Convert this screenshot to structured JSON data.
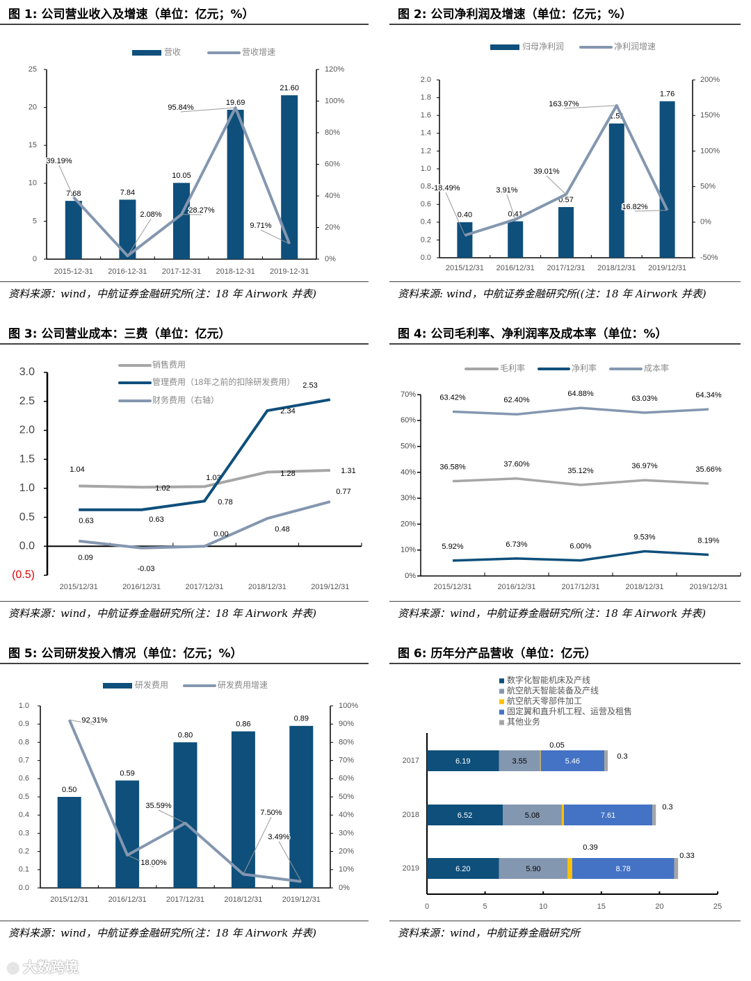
{
  "panels": [
    {
      "title": "图 1:  公司营业收入及增速（单位：亿元；%）",
      "source": "资料来源：wind，中航证券金融研究所(注：18 年 Airwork 并表)"
    },
    {
      "title": "图 2:  公司净利润及增速（单位：亿元；%）",
      "source": "资料来源: wind，中航证券金融研究所((注：18 年 Airwork 并表)"
    },
    {
      "title": "图 3:  公司营业成本：三费（单位：亿元）",
      "source": "资料来源：wind，中航证券金融研究所(注：18 年 Airwork 并表)"
    },
    {
      "title": "图 4:  公司毛利率、净利润率及成本率（单位：%）",
      "source": "资料来源：wind，中航证券金融研究所(注：18 年 Airwork 并表)"
    },
    {
      "title": "图 5:  公司研发投入情况（单位：亿元；%）",
      "source": "资料来源：wind，中航证券金融研究所(注：18 年 Airwork 并表)"
    },
    {
      "title": "图 6:  历年分产品营收（单位：亿元）",
      "source": "资料来源：wind，中航证券金融研究所"
    }
  ],
  "watermark": "大数跨境",
  "colors": {
    "dark_blue": "#0e4f7b",
    "blue_gray": "#8497b0",
    "gray": "#a6a6a6",
    "blue": "#4472c4",
    "yellow": "#ffc000",
    "other_gray": "#a5a5a5"
  },
  "chart_data": [
    {
      "type": "bar+line",
      "categories": [
        "2015-12-31",
        "2016-12-31",
        "2017-12-31",
        "2018-12-31",
        "2019-12-31"
      ],
      "bar": {
        "name": "营收",
        "values": [
          7.68,
          7.84,
          10.05,
          19.69,
          21.6
        ],
        "labels": [
          "7.68",
          "7.84",
          "10.05",
          "19.69",
          "21.60"
        ]
      },
      "line": {
        "name": "营收增速",
        "values": [
          39.19,
          2.08,
          28.27,
          95.84,
          9.71
        ],
        "labels": [
          "39.19%",
          "2.08%",
          "28.27%",
          "95.84%",
          "9.71%"
        ]
      },
      "ylim": [
        0,
        25
      ],
      "yticks": [
        "0",
        "5",
        "10",
        "15",
        "20",
        "25"
      ],
      "y2lim": [
        0,
        120
      ],
      "y2ticks": [
        "0%",
        "20%",
        "40%",
        "60%",
        "80%",
        "100%",
        "120%"
      ]
    },
    {
      "type": "bar+line",
      "categories": [
        "2015/12/31",
        "2016/12/31",
        "2017/12/31",
        "2018/12/31",
        "2019/12/31"
      ],
      "bar": {
        "name": "归母净利润",
        "values": [
          0.4,
          0.41,
          0.57,
          1.51,
          1.76
        ],
        "labels": [
          "0.40",
          "0.41",
          "0.57",
          "1.51",
          "1.76"
        ]
      },
      "line": {
        "name": "净利润增速",
        "values": [
          -18.49,
          3.91,
          39.01,
          163.97,
          16.82
        ],
        "labels": [
          "-18.49%",
          "3.91%",
          "39.01%",
          "163.97%",
          "16.82%"
        ]
      },
      "ylim": [
        0,
        2.0
      ],
      "yticks": [
        "0.0",
        "0.2",
        "0.4",
        "0.6",
        "0.8",
        "1.0",
        "1.2",
        "1.4",
        "1.6",
        "1.8",
        "2.0"
      ],
      "y2lim": [
        -50,
        200
      ],
      "y2ticks": [
        "-50%",
        "0%",
        "50%",
        "100%",
        "150%",
        "200%"
      ]
    },
    {
      "type": "line",
      "categories": [
        "2015/12/31",
        "2016/12/31",
        "2017/12/31",
        "2018/12/31",
        "2019/12/31"
      ],
      "series": [
        {
          "name": "销售费用",
          "values": [
            1.04,
            1.02,
            1.03,
            1.28,
            1.31
          ],
          "labels": [
            "1.04",
            "1.02",
            "1.03",
            "1.28",
            "1.31"
          ]
        },
        {
          "name": "管理费用（18年之前的扣除研发费用）",
          "values": [
            0.63,
            0.63,
            0.78,
            2.34,
            2.53
          ],
          "labels": [
            "0.63",
            "0.63",
            "0.78",
            "2.34",
            "2.53"
          ]
        },
        {
          "name": "财务费用（右轴）",
          "values": [
            0.09,
            -0.03,
            0.0,
            0.48,
            0.77
          ],
          "labels": [
            "0.09",
            "-0.03",
            "0.00",
            "0.48",
            "0.77"
          ]
        }
      ],
      "ylim": [
        -0.5,
        3.0
      ],
      "yticks": [
        "(0.5)",
        "0.0",
        "0.5",
        "1.0",
        "1.5",
        "2.0",
        "2.5",
        "3.0"
      ]
    },
    {
      "type": "line",
      "categories": [
        "2015/12/31",
        "2016/12/31",
        "2017/12/31",
        "2018/12/31",
        "2019/12/31"
      ],
      "series": [
        {
          "name": "毛利率",
          "values": [
            36.58,
            37.6,
            35.12,
            36.97,
            35.66
          ],
          "labels": [
            "36.58%",
            "37.60%",
            "35.12%",
            "36.97%",
            "35.66%"
          ]
        },
        {
          "name": "净利率",
          "values": [
            5.92,
            6.73,
            6.0,
            9.53,
            8.19
          ],
          "labels": [
            "5.92%",
            "6.73%",
            "6.00%",
            "9.53%",
            "8.19%"
          ]
        },
        {
          "name": "成本率",
          "values": [
            63.42,
            62.4,
            64.88,
            63.03,
            64.34
          ],
          "labels": [
            "63.42%",
            "62.40%",
            "64.88%",
            "63.03%",
            "64.34%"
          ]
        }
      ],
      "ylim": [
        0,
        70
      ],
      "yticks": [
        "0%",
        "10%",
        "20%",
        "30%",
        "40%",
        "50%",
        "60%",
        "70%"
      ]
    },
    {
      "type": "bar+line",
      "categories": [
        "2015/12/31",
        "2016/12/31",
        "2017/12/31",
        "2018/12/31",
        "2019/12/31"
      ],
      "bar": {
        "name": "研发费用",
        "values": [
          0.5,
          0.59,
          0.8,
          0.86,
          0.89
        ],
        "labels": [
          "0.50",
          "0.59",
          "0.80",
          "0.86",
          "0.89"
        ]
      },
      "line": {
        "name": "研发费用增速",
        "values": [
          92.31,
          18.0,
          35.59,
          7.5,
          3.49
        ],
        "labels": [
          "92.31%",
          "18.00%",
          "35.59%",
          "7.50%",
          "3.49%"
        ]
      },
      "ylim": [
        0,
        1.0
      ],
      "yticks": [
        "0.0",
        "0.1",
        "0.2",
        "0.3",
        "0.4",
        "0.5",
        "0.6",
        "0.7",
        "0.8",
        "0.9",
        "1.0"
      ],
      "y2lim": [
        0,
        100
      ],
      "y2ticks": [
        "0%",
        "10%",
        "20%",
        "30%",
        "40%",
        "50%",
        "60%",
        "70%",
        "80%",
        "90%",
        "100%"
      ]
    },
    {
      "type": "stacked-bar-horizontal",
      "categories": [
        "2017",
        "2018",
        "2019"
      ],
      "series": [
        {
          "name": "数字化智能机床及产线",
          "values": [
            6.19,
            6.52,
            6.2
          ],
          "labels": [
            "6.19",
            "6.52",
            "6.20"
          ]
        },
        {
          "name": "航空航天智能装备及产线",
          "values": [
            3.55,
            5.08,
            5.9
          ],
          "labels": [
            "3.55",
            "5.08",
            "5.90"
          ]
        },
        {
          "name": "航空航天零部件加工",
          "values": [
            0.05,
            0.18,
            0.39
          ],
          "labels": [
            "0.05",
            "0.18",
            "0.39"
          ]
        },
        {
          "name": "固定翼和直升机工程、运营及租售",
          "values": [
            5.46,
            7.61,
            8.78
          ],
          "labels": [
            "5.46",
            "7.61",
            "8.78"
          ]
        },
        {
          "name": "其他业务",
          "values": [
            0.3,
            0.3,
            0.33
          ],
          "labels": [
            "0.3",
            "0.3",
            "0.33"
          ]
        }
      ],
      "xlim": [
        0,
        25
      ],
      "xticks": [
        "0",
        "5",
        "10",
        "15",
        "20",
        "25"
      ]
    }
  ]
}
